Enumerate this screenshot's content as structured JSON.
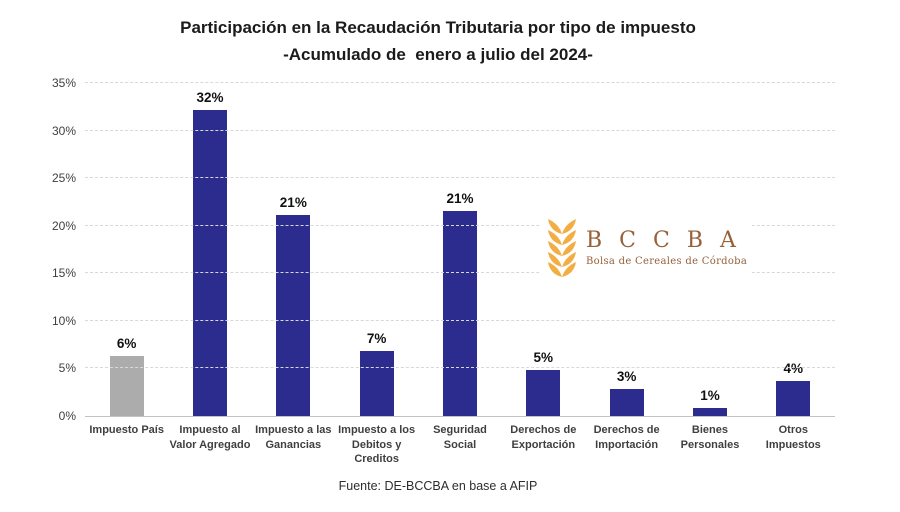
{
  "title": {
    "line1": "Participación en la Recaudación Tributaria por tipo de impuesto",
    "line2": "-Acumulado de  enero a julio del 2024-"
  },
  "chart_data": {
    "type": "bar",
    "title": "Participación en la Recaudación Tributaria por tipo de impuesto -Acumulado de enero a julio del 2024-",
    "categories": [
      "Impuesto País",
      "Impuesto al Valor Agregado",
      "Impuesto a las Ganancias",
      "Impuesto a los Debitos y Creditos",
      "Seguridad Social",
      "Derechos de Exportación",
      "Derechos de Importación",
      "Bienes Personales",
      "Otros Impuestos"
    ],
    "values": [
      6.3,
      32.2,
      21.1,
      6.8,
      21.5,
      4.8,
      2.8,
      0.8,
      3.7
    ],
    "labels": [
      "6%",
      "32%",
      "21%",
      "7%",
      "21%",
      "5%",
      "3%",
      "1%",
      "4%"
    ],
    "bar_colors": [
      "#acacac",
      "#2b2c8e",
      "#2b2c8e",
      "#2b2c8e",
      "#2b2c8e",
      "#2b2c8e",
      "#2b2c8e",
      "#2b2c8e",
      "#2b2c8e"
    ],
    "ylim": [
      0,
      35
    ],
    "yticks": [
      "0%",
      "5%",
      "10%",
      "15%",
      "20%",
      "25%",
      "30%",
      "35%"
    ],
    "grid": "horizontal-dashed",
    "legend": "none",
    "xlabel": "",
    "ylabel": "",
    "source": "Fuente: DE-BCCBA en base a AFIP"
  },
  "logo": {
    "acronym": "B C C B A",
    "subtitle": "Bolsa de Cereales de Córdoba",
    "wheat_icon_color": "#f2ae45",
    "text_color": "#96613a"
  },
  "colors": {
    "bar_default": "#2b2c8e",
    "bar_highlight": "#acacac",
    "gridline": "#d8d8d8",
    "baseline": "#c3c3c3",
    "axis_text": "#3f3f3f",
    "title_text": "#1b1b1b"
  }
}
